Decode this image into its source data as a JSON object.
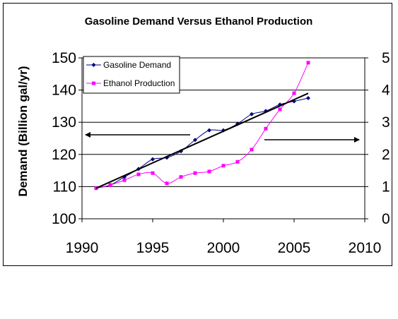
{
  "chart_data": {
    "type": "line",
    "title": "Gasoline Demand Versus Ethanol Production",
    "xlabel": "",
    "ylabel": "Demand (Billion gal/yr)",
    "y2label": "",
    "xlim": [
      1990,
      2010
    ],
    "xticks": [
      "1990",
      "1995",
      "2000",
      "2005",
      "2010"
    ],
    "ylim": [
      100,
      150
    ],
    "yticks": [
      "100",
      "110",
      "120",
      "130",
      "140",
      "150"
    ],
    "y2lim": [
      0,
      5
    ],
    "y2ticks": [
      "0",
      "1",
      "2",
      "3",
      "4",
      "5"
    ],
    "grid": "horizontal",
    "legend_position": "top-left",
    "series": [
      {
        "name": "Gasoline Demand",
        "axis": "left",
        "color": "#000080",
        "marker": "diamond",
        "x": [
          1991,
          1992,
          1993,
          1994,
          1995,
          1996,
          1997,
          1998,
          1999,
          2000,
          2001,
          2002,
          2003,
          2004,
          2005,
          2006
        ],
        "y": [
          109.5,
          110.5,
          113,
          115.5,
          118.5,
          119,
          121,
          124.5,
          127.5,
          127.5,
          129.5,
          132.5,
          133.5,
          135.5,
          136.5,
          137.5
        ]
      },
      {
        "name": "Ethanol Production",
        "axis": "right",
        "color": "#ff00ff",
        "marker": "square",
        "x": [
          1991,
          1992,
          1993,
          1994,
          1995,
          1996,
          1997,
          1998,
          1999,
          2000,
          2001,
          2002,
          2003,
          2004,
          2005,
          2006
        ],
        "y": [
          0.95,
          1.05,
          1.2,
          1.38,
          1.42,
          1.1,
          1.3,
          1.42,
          1.47,
          1.65,
          1.77,
          2.15,
          2.8,
          3.4,
          3.9,
          4.85
        ]
      }
    ],
    "trendline": {
      "series": "Gasoline Demand",
      "color": "#000000",
      "x": [
        1991,
        2006
      ],
      "y": [
        109.5,
        139
      ]
    },
    "annotations": [
      {
        "type": "arrow",
        "direction": "left",
        "meaning": "left axis"
      },
      {
        "type": "arrow",
        "direction": "right",
        "meaning": "right axis"
      }
    ]
  }
}
